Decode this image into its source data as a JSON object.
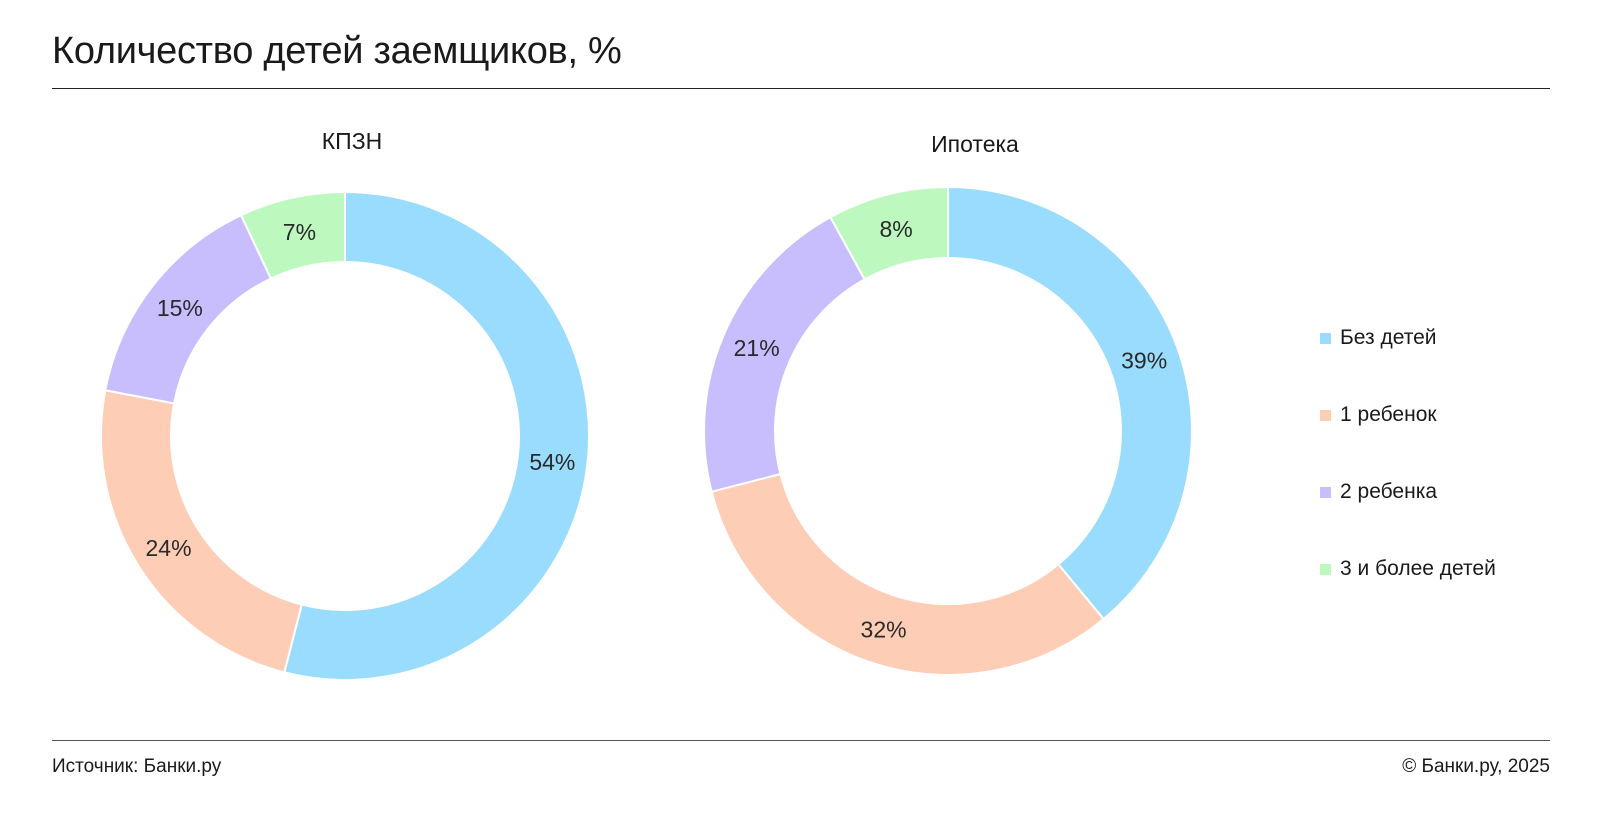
{
  "header": {
    "title": "Количество детей заемщиков, %"
  },
  "footer": {
    "source": "Источник: Банки.ру",
    "copyright": "© Банки.ру, 2025"
  },
  "legend": [
    {
      "label": "Без детей",
      "color": "#9adcfd"
    },
    {
      "label": "1 ребенок",
      "color": "#fecdb6"
    },
    {
      "label": "2 ребенка",
      "color": "#c8befd"
    },
    {
      "label": "3 и более детей",
      "color": "#bdf8bf"
    }
  ],
  "chart_data": [
    {
      "type": "pie",
      "title": "КПЗН",
      "categories": [
        "Без детей",
        "1 ребенок",
        "2 ребенка",
        "3 и более детей"
      ],
      "values": [
        54,
        24,
        15,
        7
      ],
      "labels": [
        "54%",
        "24%",
        "15%",
        "7%"
      ],
      "colors": [
        "#9adcfd",
        "#fecdb6",
        "#c8befd",
        "#bdf8bf"
      ]
    },
    {
      "type": "pie",
      "title": "Ипотека",
      "categories": [
        "Без детей",
        "1 ребенок",
        "2 ребенка",
        "3 и более детей"
      ],
      "values": [
        39,
        32,
        21,
        8
      ],
      "labels": [
        "39%",
        "32%",
        "21%",
        "8%"
      ],
      "colors": [
        "#9adcfd",
        "#fecdb6",
        "#c8befd",
        "#bdf8bf"
      ]
    }
  ]
}
